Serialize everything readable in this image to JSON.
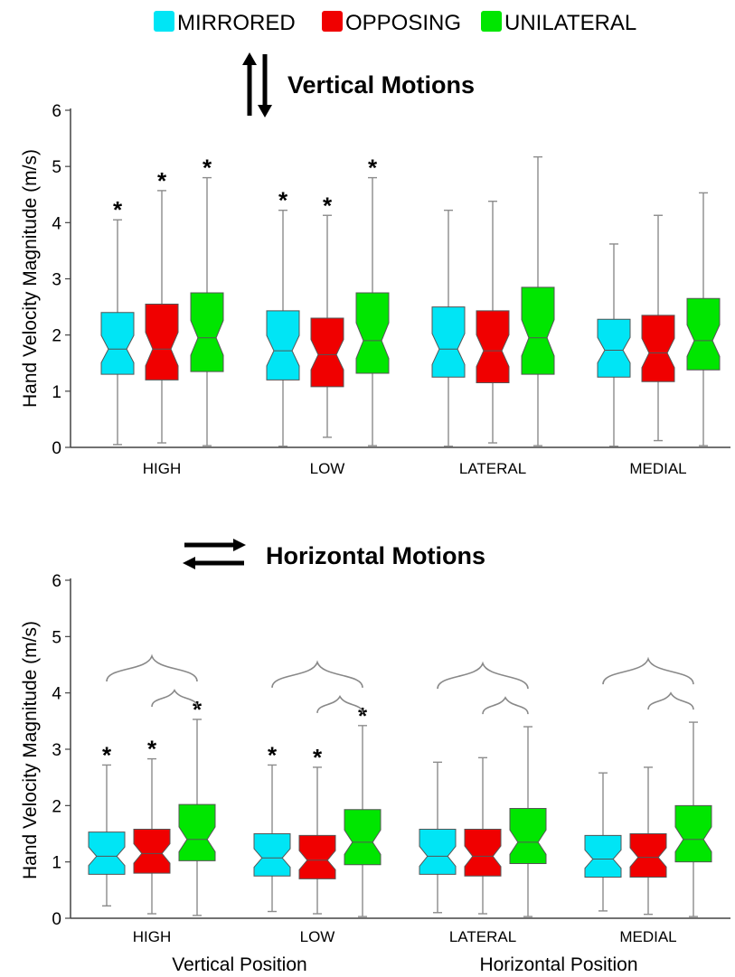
{
  "legend": [
    {
      "label": "MIRRORED",
      "color": "#00e5f5"
    },
    {
      "label": "OPPOSING",
      "color": "#f00000"
    },
    {
      "label": "UNILATERAL",
      "color": "#00e600"
    }
  ],
  "colors": {
    "axis": "#444444",
    "whisker": "#8c8c8c",
    "brace": "#888888",
    "box_stroke": "#555555"
  },
  "chart_data": [
    {
      "type": "box",
      "title": "Vertical Motions",
      "title_icon": "vertical-arrows-icon",
      "ylabel": "Hand Velocity Magnitude (m/s)",
      "ylim": [
        0,
        6
      ],
      "yticks": [
        0,
        1,
        2,
        3,
        4,
        5,
        6
      ],
      "categories": [
        "HIGH",
        "LOW",
        "LATERAL",
        "MEDIAL"
      ],
      "significance_marker": "*",
      "series": [
        {
          "name": "MIRRORED",
          "color": "#00e5f5",
          "boxes": [
            {
              "min": 0.05,
              "q1": 1.3,
              "median": 1.75,
              "q3": 2.4,
              "max": 4.05,
              "sig": true
            },
            {
              "min": 0.02,
              "q1": 1.2,
              "median": 1.72,
              "q3": 2.43,
              "max": 4.22,
              "sig": true
            },
            {
              "min": 0.02,
              "q1": 1.25,
              "median": 1.75,
              "q3": 2.5,
              "max": 4.22,
              "sig": false
            },
            {
              "min": 0.02,
              "q1": 1.25,
              "median": 1.73,
              "q3": 2.28,
              "max": 3.62,
              "sig": false
            }
          ]
        },
        {
          "name": "OPPOSING",
          "color": "#f00000",
          "boxes": [
            {
              "min": 0.08,
              "q1": 1.2,
              "median": 1.75,
              "q3": 2.55,
              "max": 4.57,
              "sig": true
            },
            {
              "min": 0.18,
              "q1": 1.08,
              "median": 1.65,
              "q3": 2.3,
              "max": 4.13,
              "sig": true
            },
            {
              "min": 0.08,
              "q1": 1.15,
              "median": 1.72,
              "q3": 2.43,
              "max": 4.38,
              "sig": false
            },
            {
              "min": 0.12,
              "q1": 1.17,
              "median": 1.68,
              "q3": 2.35,
              "max": 4.13,
              "sig": false
            }
          ]
        },
        {
          "name": "UNILATERAL",
          "color": "#00e600",
          "boxes": [
            {
              "min": 0.03,
              "q1": 1.35,
              "median": 1.95,
              "q3": 2.75,
              "max": 4.8,
              "sig": true
            },
            {
              "min": 0.03,
              "q1": 1.32,
              "median": 1.9,
              "q3": 2.75,
              "max": 4.8,
              "sig": true
            },
            {
              "min": 0.03,
              "q1": 1.3,
              "median": 1.95,
              "q3": 2.85,
              "max": 5.17,
              "sig": false
            },
            {
              "min": 0.03,
              "q1": 1.38,
              "median": 1.9,
              "q3": 2.65,
              "max": 4.53,
              "sig": false
            }
          ]
        }
      ]
    },
    {
      "type": "box",
      "title": "Horizontal Motions",
      "title_icon": "horizontal-arrows-icon",
      "ylabel": "Hand Velocity Magnitude (m/s)",
      "ylim": [
        0,
        6
      ],
      "yticks": [
        0,
        1,
        2,
        3,
        4,
        5,
        6
      ],
      "categories": [
        "HIGH",
        "LOW",
        "LATERAL",
        "MEDIAL"
      ],
      "group_labels": [
        "Vertical Position",
        "Horizontal Position"
      ],
      "significance_marker": "*",
      "comparison_braces": [
        "mirrored-vs-unilateral",
        "opposing-vs-unilateral"
      ],
      "series": [
        {
          "name": "MIRRORED",
          "color": "#00e5f5",
          "boxes": [
            {
              "min": 0.22,
              "q1": 0.78,
              "median": 1.1,
              "q3": 1.53,
              "max": 2.72,
              "sig": true
            },
            {
              "min": 0.12,
              "q1": 0.75,
              "median": 1.07,
              "q3": 1.5,
              "max": 2.72,
              "sig": true
            },
            {
              "min": 0.1,
              "q1": 0.78,
              "median": 1.1,
              "q3": 1.58,
              "max": 2.77,
              "sig": false
            },
            {
              "min": 0.13,
              "q1": 0.73,
              "median": 1.05,
              "q3": 1.47,
              "max": 2.58,
              "sig": false
            }
          ]
        },
        {
          "name": "OPPOSING",
          "color": "#f00000",
          "boxes": [
            {
              "min": 0.08,
              "q1": 0.8,
              "median": 1.15,
              "q3": 1.58,
              "max": 2.83,
              "sig": true
            },
            {
              "min": 0.08,
              "q1": 0.7,
              "median": 1.03,
              "q3": 1.47,
              "max": 2.68,
              "sig": true
            },
            {
              "min": 0.08,
              "q1": 0.75,
              "median": 1.1,
              "q3": 1.58,
              "max": 2.85,
              "sig": false
            },
            {
              "min": 0.07,
              "q1": 0.73,
              "median": 1.08,
              "q3": 1.5,
              "max": 2.68,
              "sig": false
            }
          ]
        },
        {
          "name": "UNILATERAL",
          "color": "#00e600",
          "boxes": [
            {
              "min": 0.05,
              "q1": 1.02,
              "median": 1.4,
              "q3": 2.02,
              "max": 3.53,
              "sig": true
            },
            {
              "min": 0.03,
              "q1": 0.95,
              "median": 1.35,
              "q3": 1.93,
              "max": 3.42,
              "sig": true
            },
            {
              "min": 0.03,
              "q1": 0.97,
              "median": 1.35,
              "q3": 1.95,
              "max": 3.4,
              "sig": false
            },
            {
              "min": 0.03,
              "q1": 1.0,
              "median": 1.4,
              "q3": 2.0,
              "max": 3.48,
              "sig": false
            }
          ]
        }
      ]
    }
  ]
}
